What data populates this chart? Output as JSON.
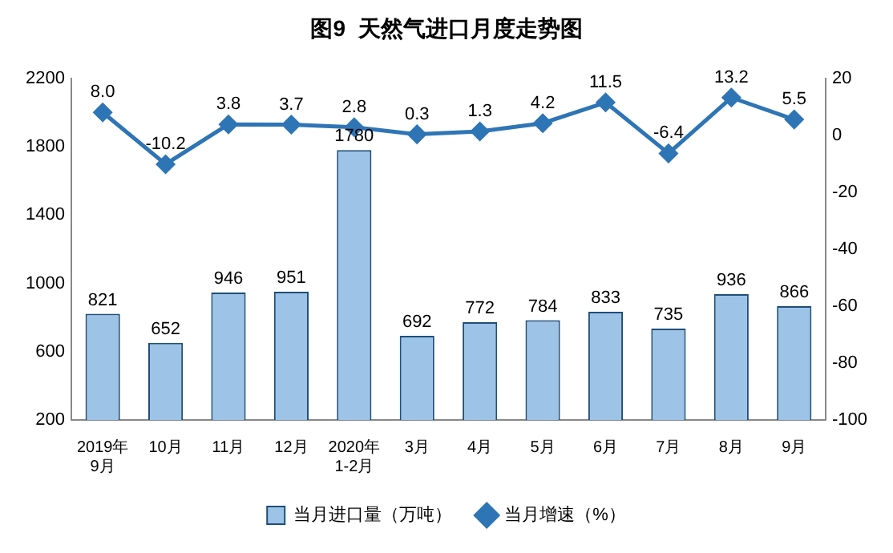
{
  "chart_data": {
    "type": "bar",
    "title": "图9  天然气进口月度走势图",
    "categories": [
      "2019年\n9月",
      "10月",
      "11月",
      "12月",
      "2020年\n1-2月",
      "3月",
      "4月",
      "5月",
      "6月",
      "7月",
      "8月",
      "9月"
    ],
    "series": [
      {
        "name": "当月进口量（万吨）",
        "color": "#9dc3e6",
        "values": [
          821,
          652,
          946,
          951,
          1780,
          692,
          772,
          784,
          833,
          735,
          936,
          866
        ]
      },
      {
        "name": "当月增速（%）",
        "type": "line",
        "axis": "y2",
        "color": "#2e75b6",
        "values": [
          8.0,
          -10.2,
          3.8,
          3.7,
          2.8,
          0.3,
          1.3,
          4.2,
          11.5,
          -6.4,
          13.2,
          5.5
        ],
        "value_labels": [
          "8.0",
          "-10.2",
          "3.8",
          "3.7",
          "2.8",
          "0.3",
          "1.3",
          "4.2",
          "11.5",
          "-6.4",
          "13.2",
          "5.5"
        ]
      }
    ],
    "ylim": [
      200,
      2200
    ],
    "yticks": [
      200,
      600,
      1000,
      1400,
      1800,
      2200
    ],
    "y2lim": [
      -100,
      20
    ],
    "y2ticks": [
      -100,
      -80,
      -60,
      -40,
      -20,
      0,
      20
    ],
    "data_labels": true,
    "grid": false,
    "legend": "bottom",
    "marker": "diamond",
    "line_style": "solid"
  }
}
